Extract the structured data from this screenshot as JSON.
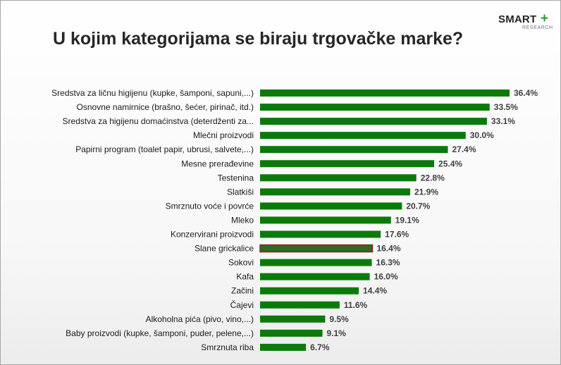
{
  "header": {
    "title": "U kojim kategorijama se biraju trgovačke marke?",
    "logo_main": "SMART",
    "logo_plus": "+",
    "logo_sub": "RESEARCH"
  },
  "colors": {
    "bar": "#0b7a0b",
    "bar_highlight": "#7a2a20",
    "bar_highlight_inner": "#2f6a23"
  },
  "chart_data": {
    "type": "bar",
    "orientation": "horizontal",
    "title": "U kojim kategorijama se biraju trgovačke marke?",
    "xlim": [
      0,
      40
    ],
    "grid": false,
    "categories": [
      "Sredstva za ličnu higijenu (kupke, šamponi, sapuni,...)",
      "Osnovne namirnice (brašno, šećer, pirinač, itd.)",
      "Sredstva za higijenu domaćinstva (deterdženti za...",
      "Mlečni proizvodi",
      "Papirni program (toalet papir, ubrusi, salvete,...)",
      "Mesne prerađevine",
      "Testenina",
      "Slatkiši",
      "Smrznuto voće i povrće",
      "Mleko",
      "Konzervirani proizvodi",
      "Slane grickalice",
      "Sokovi",
      "Kafa",
      "Začini",
      "Čajevi",
      "Alkoholna pića (pivo, vino,...)",
      "Baby proizvodi (kupke, šamponi, puder, pelene,...)",
      "Smrznuta riba"
    ],
    "values": [
      36.4,
      33.5,
      33.1,
      30.0,
      27.4,
      25.4,
      22.8,
      21.9,
      20.7,
      19.1,
      17.6,
      16.4,
      16.3,
      16.0,
      14.4,
      11.6,
      9.5,
      9.1,
      6.7
    ],
    "value_labels": [
      "36.4%",
      "33.5%",
      "33.1%",
      "30.0%",
      "27.4%",
      "25.4%",
      "22.8%",
      "21.9%",
      "20.7%",
      "19.1%",
      "17.6%",
      "16.4%",
      "16.3%",
      "16.0%",
      "14.4%",
      "11.6%",
      "9.5%",
      "9.1%",
      "6.7%"
    ],
    "highlight_index": 11
  }
}
